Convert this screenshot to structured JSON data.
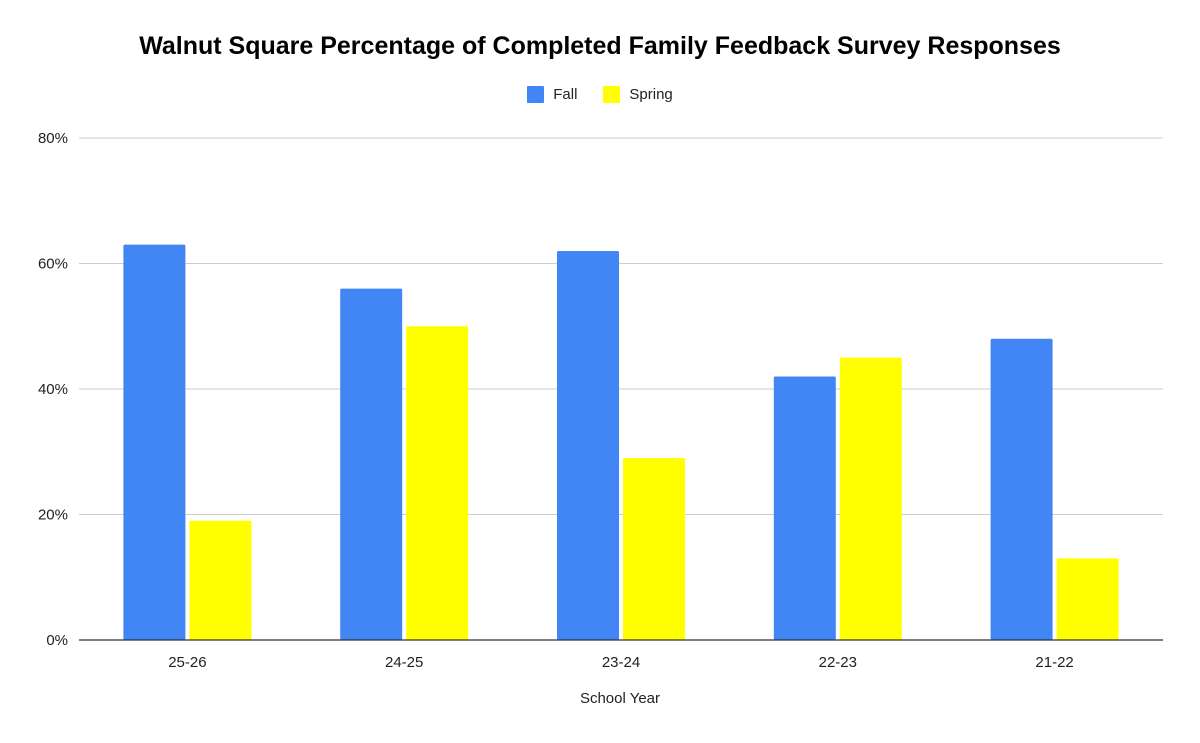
{
  "chart_data": {
    "type": "bar",
    "title": "Walnut Square Percentage of Completed Family Feedback Survey Responses",
    "xlabel": "School Year",
    "ylabel": "",
    "categories": [
      "25-26",
      "24-25",
      "23-24",
      "22-23",
      "21-22"
    ],
    "series": [
      {
        "name": "Fall",
        "color": "#4285F4",
        "values": [
          63,
          56,
          62,
          42,
          48
        ]
      },
      {
        "name": "Spring",
        "color": "#FFFF00",
        "values": [
          19,
          50,
          29,
          45,
          13
        ]
      }
    ],
    "ylim": [
      0,
      80
    ],
    "yticks": [
      0,
      20,
      40,
      60,
      80
    ],
    "ytick_labels": [
      "0%",
      "20%",
      "40%",
      "60%",
      "80%"
    ],
    "grid": true,
    "legend_position": "top-center"
  }
}
